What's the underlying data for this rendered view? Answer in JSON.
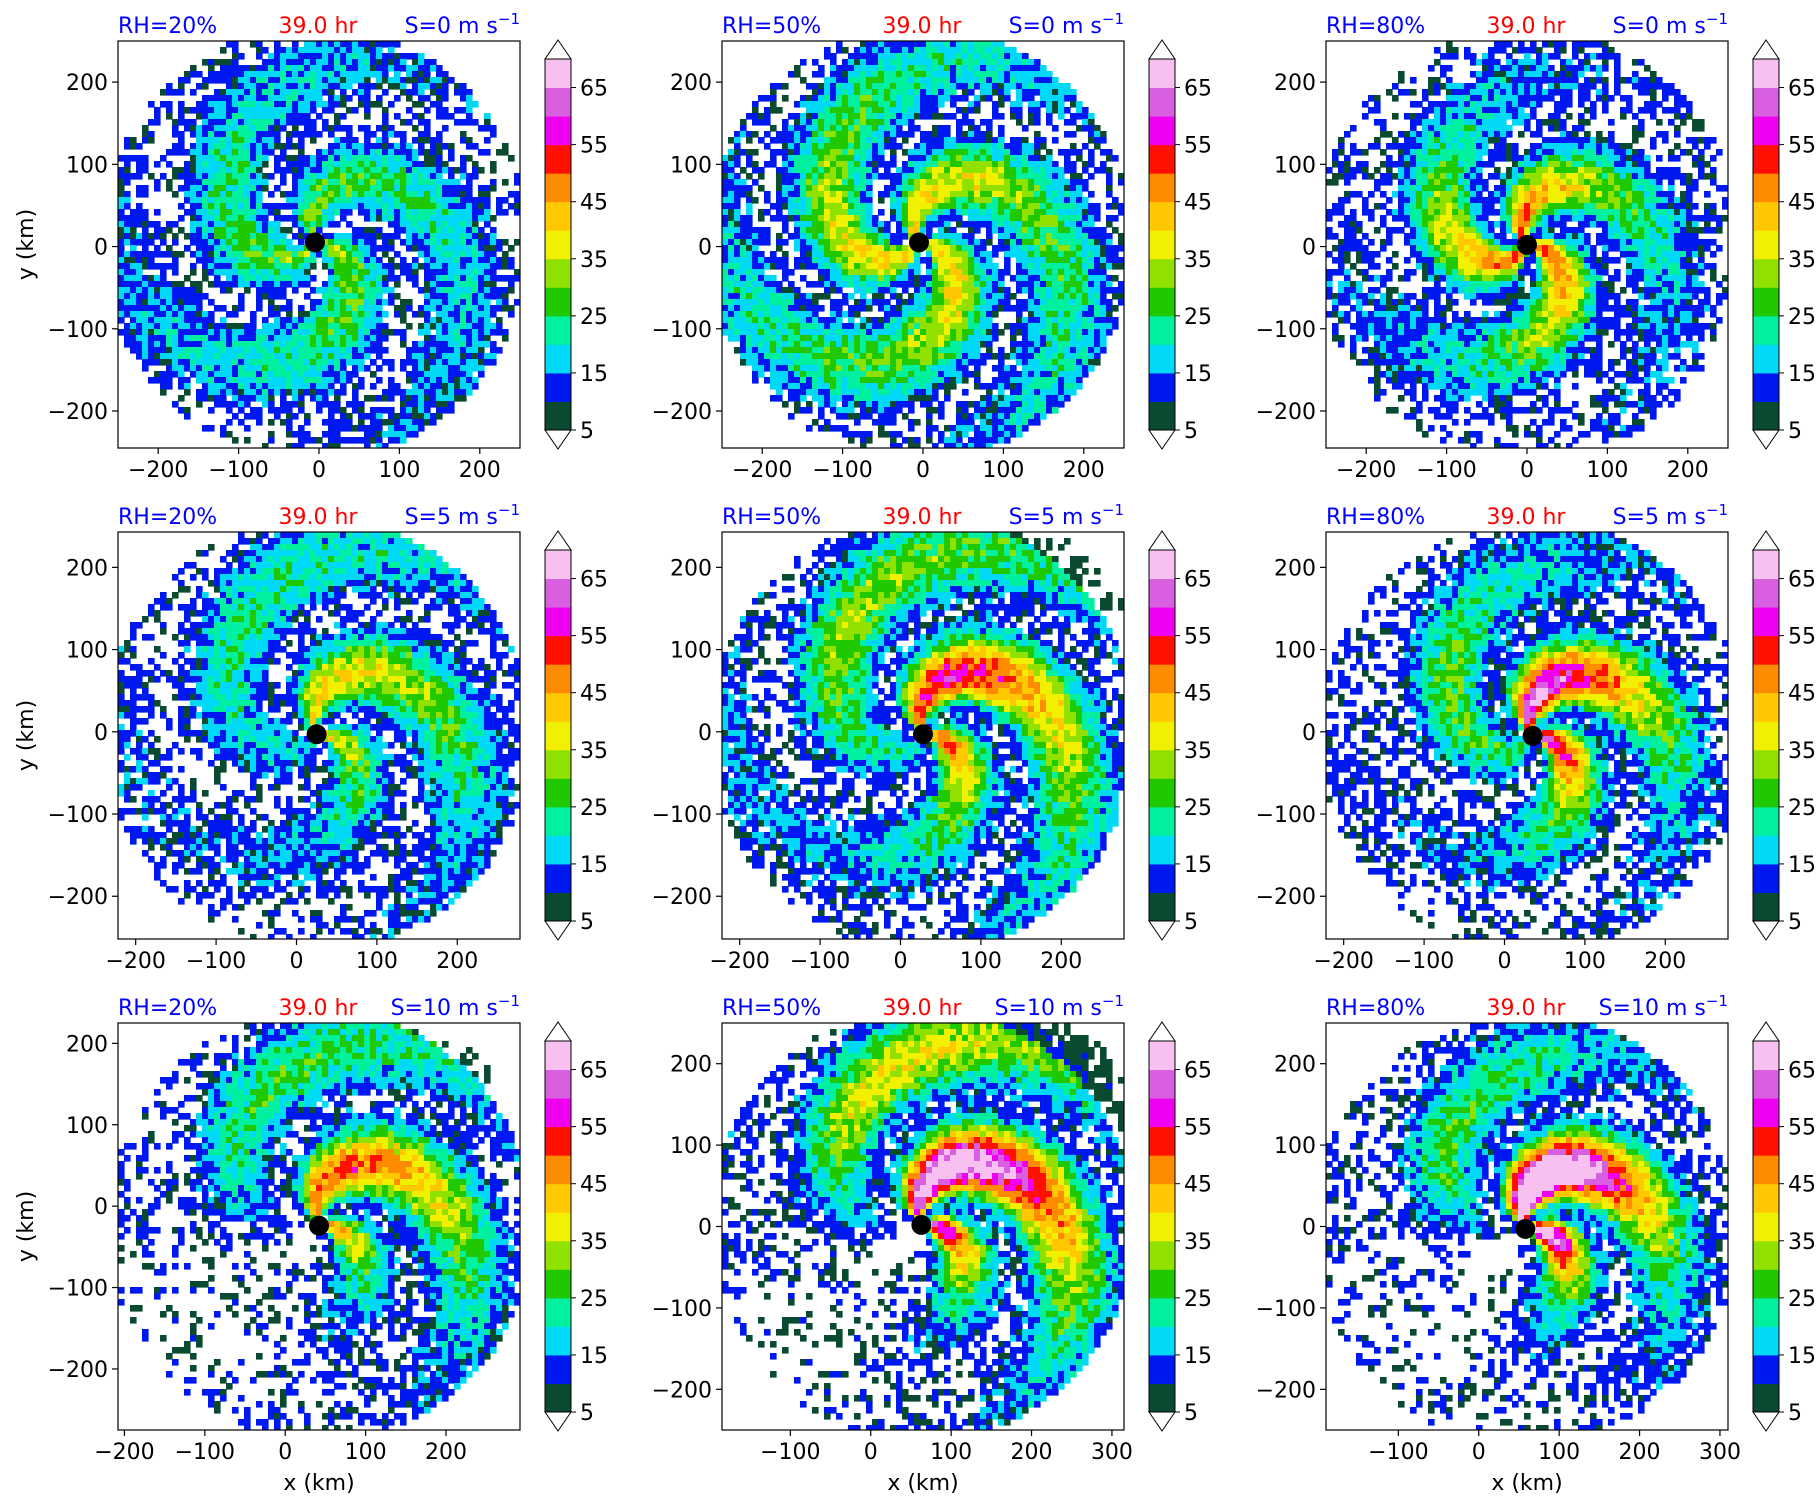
{
  "figure": {
    "time_label": "39.0 hr",
    "xlabel": "x (km)",
    "ylabel": "y (km)",
    "colors": {
      "rh": "#0000ff",
      "time": "#ff0000",
      "shear": "#0000ff",
      "center": "#000000"
    }
  },
  "colorbar": {
    "ticks": [
      "5",
      "15",
      "25",
      "35",
      "45",
      "55",
      "65"
    ],
    "levels": [
      5,
      10,
      15,
      20,
      25,
      30,
      35,
      40,
      45,
      50,
      55,
      60,
      65,
      70
    ],
    "colors": [
      "#0a4a30",
      "#0018f0",
      "#00d8f8",
      "#00f0a0",
      "#20c800",
      "#90e000",
      "#f0f000",
      "#ffc800",
      "#ff8c00",
      "#ff1000",
      "#f000f0",
      "#d860e0",
      "#f8c0f0"
    ],
    "extend": "both"
  },
  "chart_data": [
    {
      "type": "heatmap",
      "rh": "RH=20%",
      "time": "39.0 hr",
      "shear": "S=0 m s",
      "shear_exp": "−1",
      "xlim": [
        -250,
        250
      ],
      "ylim": [
        -245,
        250
      ],
      "xticks": [
        -200,
        -100,
        0,
        100,
        200
      ],
      "yticks": [
        -200,
        -100,
        0,
        100,
        200
      ],
      "xtick_labels": [
        "−200",
        "−100",
        "0",
        "100",
        "200"
      ],
      "ytick_labels": [
        "−200",
        "−100",
        "0",
        "100",
        "200"
      ],
      "center": [
        -5,
        5
      ],
      "xlabel": "",
      "ylabel": "y (km)"
    },
    {
      "type": "heatmap",
      "rh": "RH=50%",
      "time": "39.0 hr",
      "shear": "S=0 m s",
      "shear_exp": "−1",
      "xlim": [
        -250,
        250
      ],
      "ylim": [
        -245,
        250
      ],
      "xticks": [
        -200,
        -100,
        0,
        100,
        200
      ],
      "yticks": [
        -200,
        -100,
        0,
        100,
        200
      ],
      "xtick_labels": [
        "−200",
        "−100",
        "0",
        "100",
        "200"
      ],
      "ytick_labels": [
        "−200",
        "−100",
        "0",
        "100",
        "200"
      ],
      "center": [
        -5,
        5
      ],
      "xlabel": "",
      "ylabel": ""
    },
    {
      "type": "heatmap",
      "rh": "RH=80%",
      "time": "39.0 hr",
      "shear": "S=0 m s",
      "shear_exp": "−1",
      "xlim": [
        -250,
        250
      ],
      "ylim": [
        -245,
        250
      ],
      "xticks": [
        -200,
        -100,
        0,
        100,
        200
      ],
      "yticks": [
        -200,
        -100,
        0,
        100,
        200
      ],
      "xtick_labels": [
        "−200",
        "−100",
        "0",
        "100",
        "200"
      ],
      "ytick_labels": [
        "−200",
        "−100",
        "0",
        "100",
        "200"
      ],
      "center": [
        0,
        2
      ],
      "xlabel": "",
      "ylabel": ""
    },
    {
      "type": "heatmap",
      "rh": "RH=20%",
      "time": "39.0 hr",
      "shear": "S=5 m s",
      "shear_exp": "−1",
      "xlim": [
        -222,
        278
      ],
      "ylim": [
        -252,
        243
      ],
      "xticks": [
        -200,
        -100,
        0,
        100,
        200
      ],
      "yticks": [
        -200,
        -100,
        0,
        100,
        200
      ],
      "xtick_labels": [
        "−200",
        "−100",
        "0",
        "100",
        "200"
      ],
      "ytick_labels": [
        "−200",
        "−100",
        "0",
        "100",
        "200"
      ],
      "center": [
        25,
        -3
      ],
      "xlabel": "",
      "ylabel": "y (km)"
    },
    {
      "type": "heatmap",
      "rh": "RH=50%",
      "time": "39.0 hr",
      "shear": "S=5 m s",
      "shear_exp": "−1",
      "xlim": [
        -222,
        278
      ],
      "ylim": [
        -252,
        243
      ],
      "xticks": [
        -200,
        -100,
        0,
        100,
        200
      ],
      "yticks": [
        -200,
        -100,
        0,
        100,
        200
      ],
      "xtick_labels": [
        "−200",
        "−100",
        "0",
        "100",
        "200"
      ],
      "ytick_labels": [
        "−200",
        "−100",
        "0",
        "100",
        "200"
      ],
      "center": [
        28,
        -3
      ],
      "xlabel": "",
      "ylabel": ""
    },
    {
      "type": "heatmap",
      "rh": "RH=80%",
      "time": "39.0 hr",
      "shear": "S=5 m s",
      "shear_exp": "−1",
      "xlim": [
        -222,
        278
      ],
      "ylim": [
        -252,
        243
      ],
      "xticks": [
        -200,
        -100,
        0,
        100,
        200
      ],
      "yticks": [
        -200,
        -100,
        0,
        100,
        200
      ],
      "xtick_labels": [
        "−200",
        "−100",
        "0",
        "100",
        "200"
      ],
      "ytick_labels": [
        "−200",
        "−100",
        "0",
        "100",
        "200"
      ],
      "center": [
        35,
        -5
      ],
      "xlabel": "",
      "ylabel": ""
    },
    {
      "type": "heatmap",
      "rh": "RH=20%",
      "time": "39.0 hr",
      "shear": "S=10 m s",
      "shear_exp": "−1",
      "xlim": [
        -208,
        292
      ],
      "ylim": [
        -275,
        225
      ],
      "xticks": [
        -200,
        -100,
        0,
        100,
        200
      ],
      "yticks": [
        -200,
        -100,
        0,
        100,
        200
      ],
      "xtick_labels": [
        "−200",
        "−100",
        "0",
        "100",
        "200"
      ],
      "ytick_labels": [
        "−200",
        "−100",
        "0",
        "100",
        "200"
      ],
      "center": [
        42,
        -24
      ],
      "xlabel": "x (km)",
      "ylabel": "y (km)"
    },
    {
      "type": "heatmap",
      "rh": "RH=50%",
      "time": "39.0 hr",
      "shear": "S=10 m s",
      "shear_exp": "−1",
      "xlim": [
        -185,
        315
      ],
      "ylim": [
        -250,
        250
      ],
      "xticks": [
        -100,
        0,
        100,
        200,
        300
      ],
      "yticks": [
        -200,
        -100,
        0,
        100,
        200
      ],
      "xtick_labels": [
        "−100",
        "0",
        "100",
        "200",
        "300"
      ],
      "ytick_labels": [
        "−200",
        "−100",
        "0",
        "100",
        "200"
      ],
      "center": [
        63,
        2
      ],
      "xlabel": "x (km)",
      "ylabel": ""
    },
    {
      "type": "heatmap",
      "rh": "RH=80%",
      "time": "39.0 hr",
      "shear": "S=10 m s",
      "shear_exp": "−1",
      "xlim": [
        -190,
        310
      ],
      "ylim": [
        -250,
        250
      ],
      "xticks": [
        -100,
        0,
        100,
        200,
        300
      ],
      "yticks": [
        -200,
        -100,
        0,
        100,
        200
      ],
      "xtick_labels": [
        "−100",
        "0",
        "100",
        "200",
        "300"
      ],
      "ytick_labels": [
        "−200",
        "−100",
        "0",
        "100",
        "200"
      ],
      "center": [
        58,
        -3
      ],
      "xlabel": "x (km)",
      "ylabel": ""
    }
  ]
}
